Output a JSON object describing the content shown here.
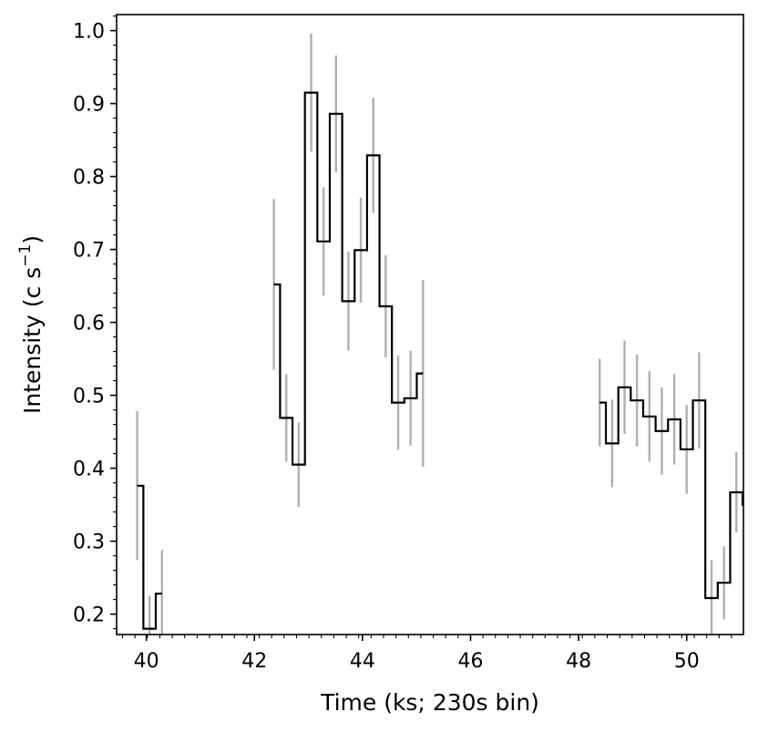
{
  "chart_data": {
    "type": "line",
    "drawstyle": "steps-mid",
    "xlabel": "Time (ks; 230s bin)",
    "ylabel_main": "Intensity (c s",
    "ylabel_sup": "−1",
    "ylabel_close": ")",
    "xlim": [
      39.45,
      51.05
    ],
    "ylim": [
      0.172,
      1.022
    ],
    "xticks": [
      40,
      42,
      44,
      46,
      48,
      50
    ],
    "xtick_labels": [
      "40",
      "42",
      "44",
      "46",
      "48",
      "50"
    ],
    "yticks": [
      0.2,
      0.3,
      0.4,
      0.5,
      0.6,
      0.7,
      0.8,
      0.9,
      1.0
    ],
    "ytick_labels": [
      "0.2",
      "0.3",
      "0.4",
      "0.5",
      "0.6",
      "0.7",
      "0.8",
      "0.9",
      "1.0"
    ],
    "x_minor_step": 0.23,
    "y_minor_step": 0.02,
    "grid": false,
    "colors": {
      "line": "#000000",
      "errorbar": "#b0b0b0"
    },
    "segments": [
      {
        "x": [
          39.83,
          40.06,
          40.29
        ],
        "y": [
          0.376,
          0.18,
          0.228
        ],
        "yerr": [
          0.102,
          0.045,
          0.06
        ]
      },
      {
        "x": [
          42.36,
          42.59,
          42.82,
          43.05,
          43.28,
          43.51,
          43.74,
          43.97,
          44.2,
          44.43,
          44.66,
          44.89,
          45.12
        ],
        "y": [
          0.652,
          0.469,
          0.405,
          0.915,
          0.711,
          0.886,
          0.629,
          0.699,
          0.829,
          0.622,
          0.49,
          0.496,
          0.53
        ],
        "yerr": [
          0.117,
          0.06,
          0.058,
          0.081,
          0.074,
          0.08,
          0.068,
          0.072,
          0.079,
          0.07,
          0.065,
          0.065,
          0.128
        ]
      },
      {
        "x": [
          48.39,
          48.62,
          48.85,
          49.08,
          49.31,
          49.54,
          49.77,
          50.0,
          50.23,
          50.46,
          50.69,
          50.92,
          51.15
        ],
        "y": [
          0.49,
          0.434,
          0.511,
          0.493,
          0.471,
          0.451,
          0.467,
          0.426,
          0.493,
          0.222,
          0.243,
          0.367,
          0.35
        ],
        "yerr": [
          0.06,
          0.06,
          0.064,
          0.063,
          0.062,
          0.06,
          0.062,
          0.061,
          0.066,
          0.052,
          0.05,
          0.055,
          0.053
        ]
      }
    ]
  }
}
